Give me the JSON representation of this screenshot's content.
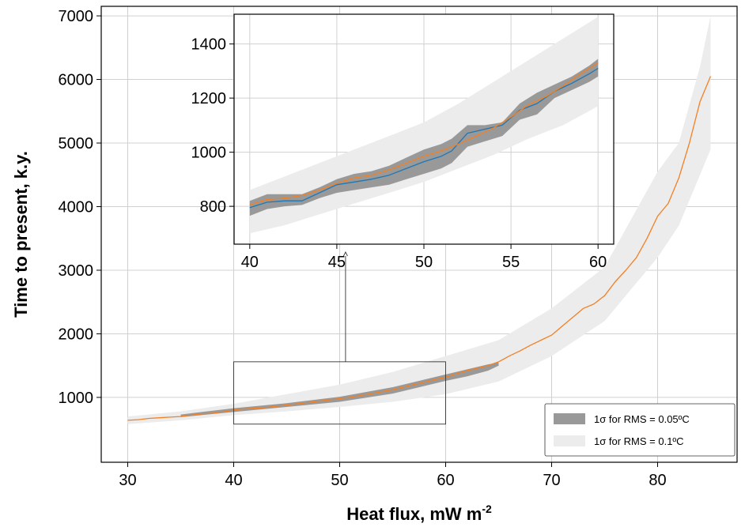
{
  "chart_data": [
    {
      "type": "area",
      "panel": "main",
      "xlabel": "Heat flux, mW m",
      "xlabel_superscript": "-2",
      "ylabel": "Time to present, k.y.",
      "xlim": [
        27.5,
        87.5
      ],
      "ylim": [
        -20,
        7150
      ],
      "xticks": [
        30,
        40,
        50,
        60,
        70,
        80
      ],
      "yticks": [
        1000,
        2000,
        3000,
        4000,
        5000,
        6000,
        7000
      ],
      "grid": true,
      "legend_position": "bottom-right",
      "series": [
        {
          "kind": "line",
          "color": "#f28025",
          "x": [
            30,
            31,
            32,
            33,
            34,
            35,
            36,
            37,
            38,
            39,
            40,
            41,
            42,
            43,
            44,
            45,
            46,
            47,
            48,
            49,
            50,
            51,
            52,
            53,
            54,
            55,
            56,
            57,
            58,
            59,
            60,
            61,
            62,
            63,
            64,
            65,
            66,
            67,
            68,
            69,
            70,
            71,
            72,
            73,
            74,
            75,
            76,
            77,
            78,
            79,
            80,
            81,
            82,
            83,
            84,
            85
          ],
          "y": [
            640,
            650,
            670,
            680,
            690,
            700,
            720,
            740,
            750,
            770,
            800,
            820,
            830,
            840,
            860,
            880,
            900,
            920,
            940,
            960,
            980,
            1000,
            1030,
            1060,
            1090,
            1120,
            1160,
            1200,
            1240,
            1280,
            1320,
            1370,
            1420,
            1460,
            1500,
            1560,
            1650,
            1730,
            1820,
            1900,
            1980,
            2120,
            2260,
            2400,
            2470,
            2600,
            2820,
            3000,
            3200,
            3500,
            3850,
            4050,
            4450,
            5000,
            5650,
            6050
          ]
        },
        {
          "name": "1σ for RMS = 0.1ºC",
          "kind": "band",
          "color": "#ececec",
          "x": [
            30,
            35,
            40,
            45,
            50,
            55,
            60,
            65,
            70,
            75,
            80,
            82,
            84,
            85
          ],
          "y_low": [
            580,
            640,
            720,
            780,
            850,
            930,
            1050,
            1250,
            1650,
            2200,
            3200,
            3700,
            4500,
            4900
          ],
          "y_high": [
            700,
            780,
            900,
            1050,
            1200,
            1400,
            1650,
            1900,
            2400,
            3050,
            4550,
            5000,
            6200,
            7000
          ]
        },
        {
          "name": "1σ for RMS = 0.05ºC",
          "kind": "band",
          "color": "#999999",
          "x": [
            35,
            40,
            45,
            50,
            55,
            60,
            62,
            64,
            65
          ],
          "y_low": [
            690,
            770,
            850,
            930,
            1060,
            1260,
            1330,
            1420,
            1500
          ],
          "y_high": [
            730,
            830,
            910,
            1010,
            1160,
            1360,
            1440,
            1520,
            1550
          ]
        }
      ],
      "inset_box": {
        "x_range": [
          40,
          60
        ],
        "y_range": [
          580,
          1560
        ]
      },
      "arrow": {
        "from": [
          45,
          1560
        ],
        "to_inset_x": 45.5
      }
    },
    {
      "type": "area",
      "panel": "inset",
      "xlim": [
        39.1,
        60.9
      ],
      "ylim": [
        660,
        1510
      ],
      "xticks": [
        40,
        45,
        50,
        55,
        60
      ],
      "yticks": [
        800,
        1000,
        1200,
        1400
      ],
      "grid": true,
      "series": [
        {
          "kind": "band",
          "color": "#ececec",
          "x": [
            40,
            42,
            44,
            46,
            48,
            50,
            52,
            54,
            56,
            58,
            60
          ],
          "y_low": [
            700,
            730,
            770,
            810,
            850,
            890,
            940,
            990,
            1050,
            1100,
            1170
          ],
          "y_high": [
            860,
            910,
            960,
            1010,
            1060,
            1110,
            1180,
            1260,
            1340,
            1420,
            1500
          ]
        },
        {
          "kind": "band",
          "color": "#999999",
          "x": [
            40,
            41,
            42,
            43,
            44,
            45,
            46,
            47,
            48,
            49,
            50,
            51,
            51.6,
            52.5,
            53.5,
            54.5,
            55.5,
            56.5,
            57.5,
            58.5,
            59.5,
            60
          ],
          "y_low": [
            765,
            790,
            800,
            805,
            830,
            850,
            860,
            870,
            880,
            900,
            920,
            940,
            960,
            1020,
            1040,
            1060,
            1120,
            1140,
            1200,
            1230,
            1260,
            1280
          ],
          "y_high": [
            820,
            845,
            845,
            845,
            870,
            900,
            920,
            930,
            950,
            980,
            1010,
            1030,
            1050,
            1100,
            1100,
            1110,
            1180,
            1220,
            1250,
            1280,
            1320,
            1345
          ]
        },
        {
          "kind": "line",
          "color": "#1f77b4",
          "x": [
            40,
            41,
            42,
            43,
            44,
            45,
            46,
            47,
            48,
            49,
            50,
            51,
            51.6,
            52.5,
            53.5,
            54.5,
            55.5,
            56.5,
            57.5,
            58.5,
            59.5,
            60
          ],
          "y": [
            795,
            815,
            820,
            820,
            850,
            880,
            890,
            900,
            915,
            940,
            965,
            985,
            1005,
            1070,
            1085,
            1100,
            1155,
            1180,
            1225,
            1255,
            1290,
            1310
          ]
        },
        {
          "kind": "line",
          "color": "#f28025",
          "x": [
            40,
            41,
            42,
            43,
            44,
            45,
            46,
            47,
            48,
            49,
            50,
            51,
            52,
            53,
            54,
            55,
            56,
            57,
            58,
            59,
            60
          ],
          "y": [
            805,
            825,
            830,
            840,
            860,
            885,
            905,
            915,
            935,
            960,
            985,
            1005,
            1030,
            1060,
            1090,
            1130,
            1175,
            1205,
            1245,
            1290,
            1330
          ]
        }
      ]
    }
  ]
}
